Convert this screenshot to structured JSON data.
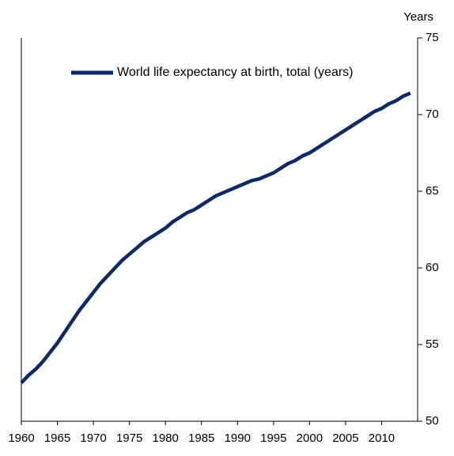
{
  "chart_data": {
    "type": "line",
    "y_label": "Years",
    "x": [
      1960,
      1961,
      1962,
      1963,
      1964,
      1965,
      1966,
      1967,
      1968,
      1969,
      1970,
      1971,
      1972,
      1973,
      1974,
      1975,
      1976,
      1977,
      1978,
      1979,
      1980,
      1981,
      1982,
      1983,
      1984,
      1985,
      1986,
      1987,
      1988,
      1989,
      1990,
      1991,
      1992,
      1993,
      1994,
      1995,
      1996,
      1997,
      1998,
      1999,
      2000,
      2001,
      2002,
      2003,
      2004,
      2005,
      2006,
      2007,
      2008,
      2009,
      2010,
      2011,
      2012,
      2013,
      2014
    ],
    "series": [
      {
        "name": "World life expectancy at birth, total (years)",
        "color": "#0d2a63",
        "values": [
          52.5,
          53.0,
          53.4,
          53.9,
          54.5,
          55.1,
          55.8,
          56.5,
          57.2,
          57.8,
          58.4,
          59.0,
          59.5,
          60.0,
          60.5,
          60.9,
          61.3,
          61.7,
          62.0,
          62.3,
          62.6,
          63.0,
          63.3,
          63.6,
          63.8,
          64.1,
          64.4,
          64.7,
          64.9,
          65.1,
          65.3,
          65.5,
          65.7,
          65.8,
          66.0,
          66.2,
          66.5,
          66.8,
          67.0,
          67.3,
          67.5,
          67.8,
          68.1,
          68.4,
          68.7,
          69.0,
          69.3,
          69.6,
          69.9,
          70.2,
          70.4,
          70.7,
          70.9,
          71.2,
          71.4
        ]
      }
    ],
    "xlim": [
      1960,
      2015
    ],
    "xticks": [
      1960,
      1965,
      1970,
      1975,
      1980,
      1985,
      1990,
      1995,
      2000,
      2005,
      2010
    ],
    "ylim": [
      50,
      75
    ],
    "yticks": [
      50,
      55,
      60,
      65,
      70,
      75
    ],
    "y_axis_side": "right",
    "grid": false
  }
}
